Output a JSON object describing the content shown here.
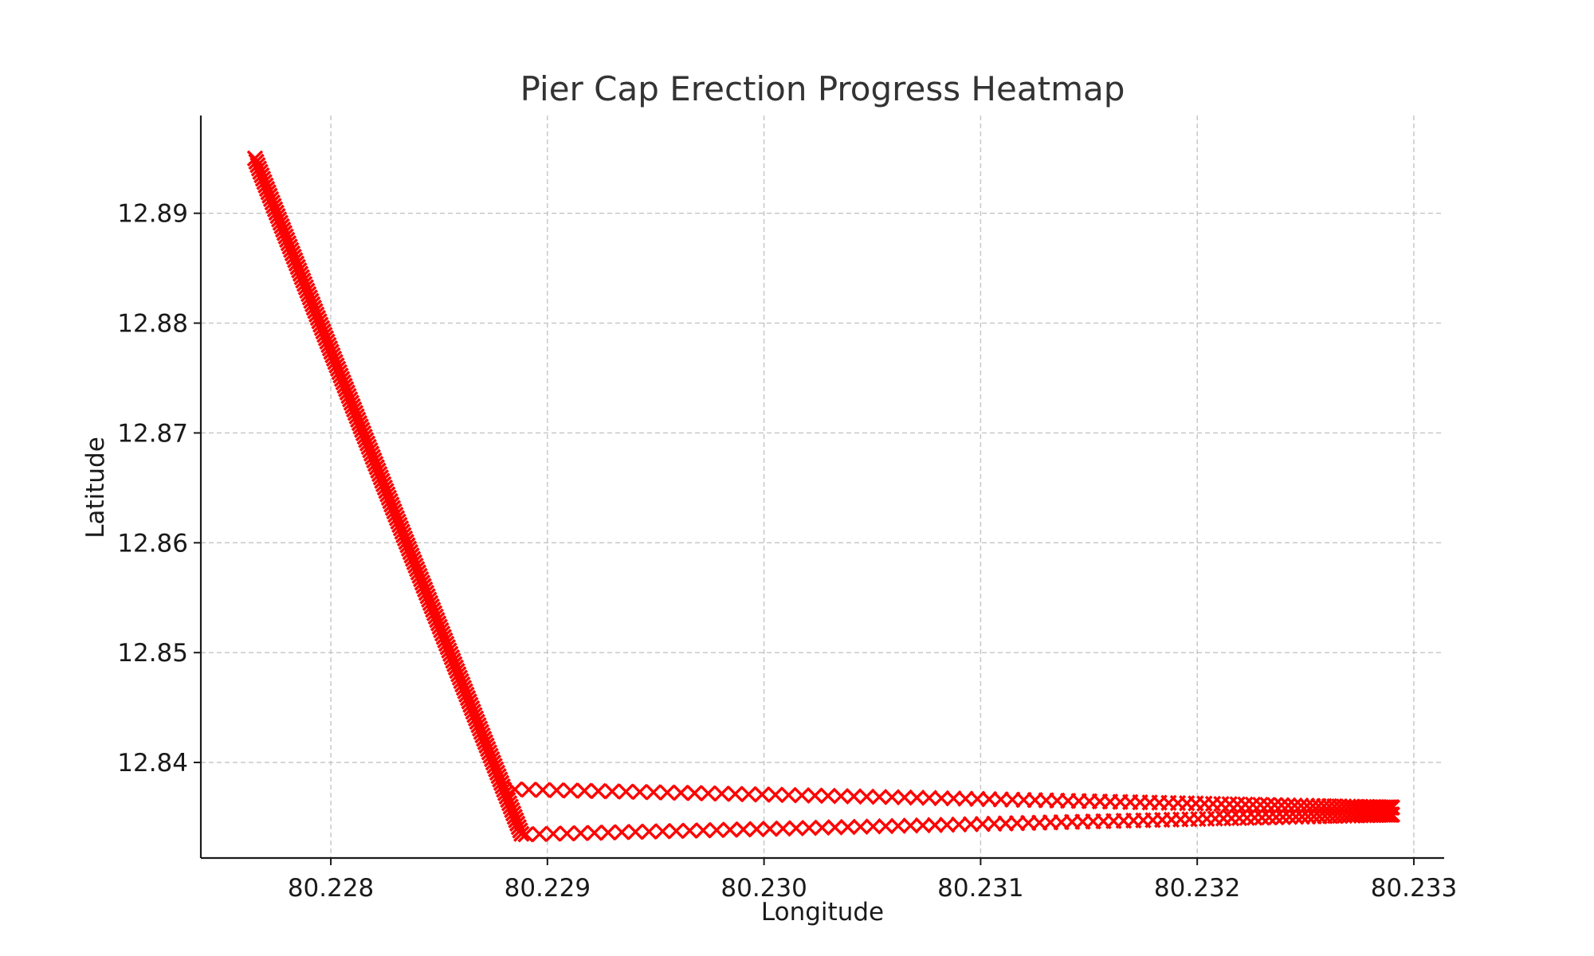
{
  "chart_data": {
    "type": "scatter",
    "title": "Pier Cap Erection Progress Heatmap",
    "xlabel": "Longitude",
    "ylabel": "Latitude",
    "xlim": [
      80.2274,
      80.23314
    ],
    "ylim": [
      12.8313,
      12.8989
    ],
    "xticks": [
      80.228,
      80.229,
      80.23,
      80.231,
      80.232,
      80.233
    ],
    "xtick_labels": [
      "80.228",
      "80.229",
      "80.230",
      "80.231",
      "80.232",
      "80.233"
    ],
    "yticks": [
      12.84,
      12.85,
      12.86,
      12.87,
      12.88,
      12.89
    ],
    "ytick_labels": [
      "12.84",
      "12.85",
      "12.86",
      "12.87",
      "12.88",
      "12.89"
    ],
    "grid": true,
    "marker": "x",
    "marker_color": "#ff0000",
    "series": [
      {
        "segment": "diagonal",
        "start": [
          80.22765,
          12.895
        ],
        "end": [
          80.22888,
          12.8335
        ],
        "count": 200
      },
      {
        "segment": "upper-row",
        "start": [
          80.22885,
          12.83755
        ],
        "end": [
          80.2329,
          12.8359
        ],
        "count": 100
      },
      {
        "segment": "lower-row",
        "start": [
          80.2289,
          12.83345
        ],
        "end": [
          80.2329,
          12.83525
        ],
        "count": 100
      }
    ]
  }
}
